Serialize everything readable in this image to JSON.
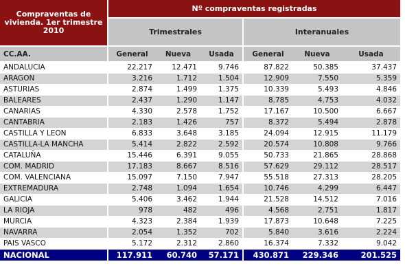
{
  "header": {
    "corner_title": "Compraventas de vivienda. 1er trimestre 2010",
    "main_title": "Nº compraventas registradas",
    "group_trimestrales": "Trimestrales",
    "group_interanuales": "Interanuales",
    "ccaa_label": "CC.AA.",
    "columns": [
      "General",
      "Nueva",
      "Usada",
      "General",
      "Nueva",
      "Usada"
    ]
  },
  "rows": [
    {
      "name": "ANDALUCIA",
      "values": [
        "22.217",
        "12.471",
        "9.746",
        "87.822",
        "50.385",
        "37.437"
      ]
    },
    {
      "name": "ARAGON",
      "values": [
        "3.216",
        "1.712",
        "1.504",
        "12.909",
        "7.550",
        "5.359"
      ]
    },
    {
      "name": "ASTURIAS",
      "values": [
        "2.874",
        "1.499",
        "1.375",
        "10.339",
        "5.493",
        "4.846"
      ]
    },
    {
      "name": "BALEARES",
      "values": [
        "2.437",
        "1.290",
        "1.147",
        "8.785",
        "4.753",
        "4.032"
      ]
    },
    {
      "name": "CANARIAS",
      "values": [
        "4.330",
        "2.578",
        "1.752",
        "17.167",
        "10.500",
        "6.667"
      ]
    },
    {
      "name": "CANTABRIA",
      "values": [
        "2.183",
        "1.426",
        "757",
        "8.372",
        "5.494",
        "2.878"
      ]
    },
    {
      "name": "CASTILLA Y LEON",
      "values": [
        "6.833",
        "3.648",
        "3.185",
        "24.094",
        "12.915",
        "11.179"
      ]
    },
    {
      "name": "CASTILLA-LA MANCHA",
      "values": [
        "5.414",
        "2.822",
        "2.592",
        "20.574",
        "10.808",
        "9.766"
      ]
    },
    {
      "name": "CATALUÑA",
      "values": [
        "15.446",
        "6.391",
        "9.055",
        "50.733",
        "21.865",
        "28.868"
      ]
    },
    {
      "name": "COM. MADRID",
      "values": [
        "17.183",
        "8.667",
        "8.516",
        "57.629",
        "29.112",
        "28.517"
      ]
    },
    {
      "name": "COM. VALENCIANA",
      "values": [
        "15.097",
        "7.150",
        "7.947",
        "55.518",
        "27.313",
        "28.205"
      ]
    },
    {
      "name": "EXTREMADURA",
      "values": [
        "2.748",
        "1.094",
        "1.654",
        "10.746",
        "4.299",
        "6.447"
      ]
    },
    {
      "name": "GALICIA",
      "values": [
        "5.406",
        "3.462",
        "1.944",
        "21.528",
        "14.512",
        "7.016"
      ]
    },
    {
      "name": "LA RIOJA",
      "values": [
        "978",
        "482",
        "496",
        "4.568",
        "2.751",
        "1.817"
      ]
    },
    {
      "name": "MURCIA",
      "values": [
        "4.323",
        "2.384",
        "1.939",
        "17.873",
        "10.648",
        "7.225"
      ]
    },
    {
      "name": "NAVARRA",
      "values": [
        "2.054",
        "1.352",
        "702",
        "5.840",
        "3.616",
        "2.224"
      ]
    },
    {
      "name": "PAIS VASCO",
      "values": [
        "5.172",
        "2.312",
        "2.860",
        "16.374",
        "7.332",
        "9.042"
      ]
    }
  ],
  "total": {
    "name": "NACIONAL",
    "values": [
      "117.911",
      "60.740",
      "57.171",
      "430.871",
      "229.346",
      "201.525"
    ]
  },
  "colors": {
    "header_red": "#8b1212",
    "header_grey": "#c4c4c4",
    "stripe_grey": "#d4d4d4",
    "total_navy": "#000080"
  }
}
